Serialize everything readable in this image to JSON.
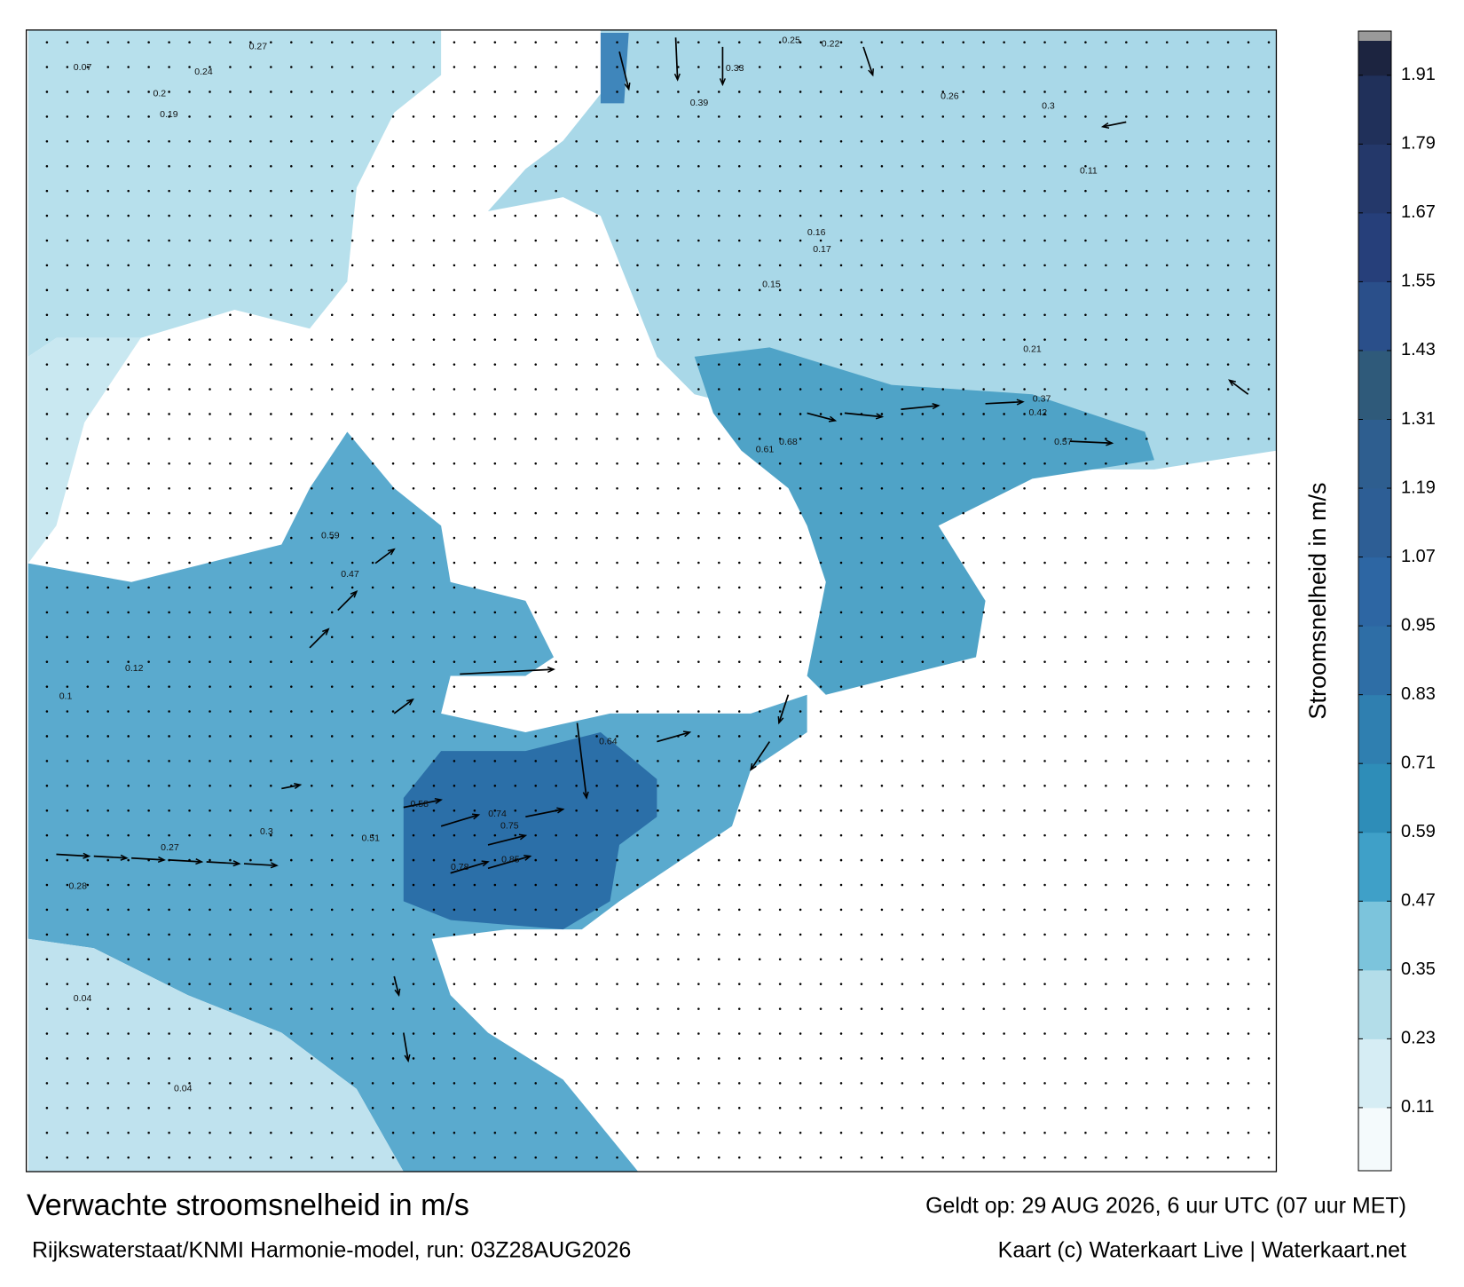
{
  "map": {
    "title": "Verwachte stroomsnelheid in m/s",
    "source": "Rijkswaterstaat/KNMI Harmonie-model, run: 03Z28AUG2026",
    "valid": "Geldt op: 29 AUG 2026, 6 uur UTC (07 uur MET)",
    "credit": "Kaart (c) Waterkaart Live | Waterkaart.net"
  },
  "colorbar": {
    "label": "Stroomsnelheid in m/s",
    "lim": [
      0,
      1.97
    ],
    "ticks": [
      0.11,
      0.23,
      0.35,
      0.47,
      0.59,
      0.71,
      0.83,
      0.95,
      1.07,
      1.19,
      1.31,
      1.43,
      1.55,
      1.67,
      1.79,
      1.91
    ],
    "colors": [
      "#f4fafc",
      "#d6edf4",
      "#b3dde9",
      "#7cc4dc",
      "#3fa0c8",
      "#2e8db8",
      "#2f7fb0",
      "#2e6ea6",
      "#2d66a3",
      "#2d5e95",
      "#2e5e8f",
      "#2f5a7a",
      "#2a4f8a",
      "#263f7a",
      "#24386a",
      "#20305a",
      "#1c2440"
    ]
  },
  "labels": [
    0.07,
    0.27,
    0.2,
    0.19,
    0.24,
    0.33,
    0.25,
    0.22,
    0.39,
    0.26,
    0.3,
    0.37,
    0.42,
    0.57,
    0.68,
    0.61,
    0.74,
    0.75,
    0.85,
    0.78,
    0.58,
    0.51,
    0.64,
    0.3,
    0.27,
    0.28,
    0.04,
    0.04,
    0.1,
    0.12,
    0.59,
    0.47,
    0.11,
    0.16,
    0.17,
    0.15,
    0.21
  ]
}
